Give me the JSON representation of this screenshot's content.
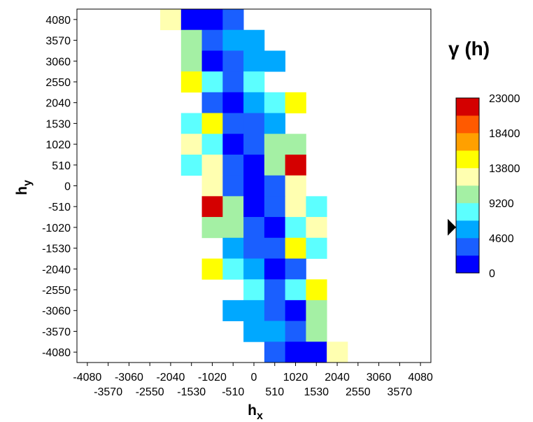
{
  "chart_data": {
    "type": "heatmap",
    "title": "",
    "xlabel": {
      "main": "h",
      "sub": "x"
    },
    "ylabel": {
      "main": "h",
      "sub": "y"
    },
    "x_tick_labels_row1": [
      "-4080",
      "-3060",
      "-2040",
      "-1020",
      "0",
      "1020",
      "2040",
      "3060",
      "4080"
    ],
    "x_tick_labels_row2": [
      "-3570",
      "-2550",
      "-1530",
      "-510",
      "510",
      "1530",
      "2550",
      "3570"
    ],
    "y_tick_labels": [
      "4080",
      "3570",
      "3060",
      "2550",
      "2040",
      "1530",
      "1020",
      "510",
      "0",
      "-510",
      "-1020",
      "-1530",
      "-2040",
      "-2550",
      "-3060",
      "-3570",
      "-4080"
    ],
    "xlim": [
      -4335,
      4335
    ],
    "ylim": [
      -4335,
      4335
    ],
    "cell_size": 510,
    "cells": [
      {
        "x": -2040,
        "y": 4080,
        "v": 13000
      },
      {
        "x": -1530,
        "y": 4080,
        "v": 1000
      },
      {
        "x": -1020,
        "y": 4080,
        "v": 1000
      },
      {
        "x": -510,
        "y": 4080,
        "v": 3000
      },
      {
        "x": -1530,
        "y": 3570,
        "v": 10500
      },
      {
        "x": -1020,
        "y": 3570,
        "v": 3500
      },
      {
        "x": -510,
        "y": 3570,
        "v": 5800
      },
      {
        "x": 0,
        "y": 3570,
        "v": 5800
      },
      {
        "x": -1530,
        "y": 3060,
        "v": 10500
      },
      {
        "x": -1020,
        "y": 3060,
        "v": 1000
      },
      {
        "x": -510,
        "y": 3060,
        "v": 3500
      },
      {
        "x": 0,
        "y": 3060,
        "v": 5800
      },
      {
        "x": 510,
        "y": 3060,
        "v": 5800
      },
      {
        "x": -1530,
        "y": 2550,
        "v": 14500
      },
      {
        "x": -1020,
        "y": 2550,
        "v": 8200
      },
      {
        "x": -510,
        "y": 2550,
        "v": 3500
      },
      {
        "x": 0,
        "y": 2550,
        "v": 8200
      },
      {
        "x": -1020,
        "y": 2040,
        "v": 3500
      },
      {
        "x": -510,
        "y": 2040,
        "v": 1000
      },
      {
        "x": 0,
        "y": 2040,
        "v": 5800
      },
      {
        "x": 510,
        "y": 2040,
        "v": 8200
      },
      {
        "x": 1020,
        "y": 2040,
        "v": 14500
      },
      {
        "x": -1530,
        "y": 1530,
        "v": 8200
      },
      {
        "x": -1020,
        "y": 1530,
        "v": 14500
      },
      {
        "x": -510,
        "y": 1530,
        "v": 3500
      },
      {
        "x": 0,
        "y": 1530,
        "v": 3500
      },
      {
        "x": 510,
        "y": 1530,
        "v": 5800
      },
      {
        "x": -1530,
        "y": 1020,
        "v": 13000
      },
      {
        "x": -1020,
        "y": 1020,
        "v": 8200
      },
      {
        "x": -510,
        "y": 1020,
        "v": 1000
      },
      {
        "x": 0,
        "y": 1020,
        "v": 3500
      },
      {
        "x": 510,
        "y": 1020,
        "v": 10500
      },
      {
        "x": 1020,
        "y": 1020,
        "v": 10500
      },
      {
        "x": -1530,
        "y": 510,
        "v": 8200
      },
      {
        "x": -1020,
        "y": 510,
        "v": 13000
      },
      {
        "x": -510,
        "y": 510,
        "v": 3500
      },
      {
        "x": 0,
        "y": 510,
        "v": 1000
      },
      {
        "x": 510,
        "y": 510,
        "v": 10500
      },
      {
        "x": 1020,
        "y": 510,
        "v": 22000
      },
      {
        "x": -1020,
        "y": 0,
        "v": 13000
      },
      {
        "x": -510,
        "y": 0,
        "v": 3500
      },
      {
        "x": 0,
        "y": 0,
        "v": 1000
      },
      {
        "x": 510,
        "y": 0,
        "v": 3500
      },
      {
        "x": 1020,
        "y": 0,
        "v": 13000
      },
      {
        "x": -1020,
        "y": -510,
        "v": 22000
      },
      {
        "x": -510,
        "y": -510,
        "v": 10500
      },
      {
        "x": 0,
        "y": -510,
        "v": 1000
      },
      {
        "x": 510,
        "y": -510,
        "v": 3500
      },
      {
        "x": 1020,
        "y": -510,
        "v": 13000
      },
      {
        "x": 1530,
        "y": -510,
        "v": 8200
      },
      {
        "x": -1020,
        "y": -1020,
        "v": 10500
      },
      {
        "x": -510,
        "y": -1020,
        "v": 10500
      },
      {
        "x": 0,
        "y": -1020,
        "v": 3500
      },
      {
        "x": 510,
        "y": -1020,
        "v": 1000
      },
      {
        "x": 1020,
        "y": -1020,
        "v": 8200
      },
      {
        "x": 1530,
        "y": -1020,
        "v": 13000
      },
      {
        "x": -510,
        "y": -1530,
        "v": 5800
      },
      {
        "x": 0,
        "y": -1530,
        "v": 3500
      },
      {
        "x": 510,
        "y": -1530,
        "v": 3500
      },
      {
        "x": 1020,
        "y": -1530,
        "v": 14500
      },
      {
        "x": 1530,
        "y": -1530,
        "v": 8200
      },
      {
        "x": -1020,
        "y": -2040,
        "v": 14500
      },
      {
        "x": -510,
        "y": -2040,
        "v": 8200
      },
      {
        "x": 0,
        "y": -2040,
        "v": 5800
      },
      {
        "x": 510,
        "y": -2040,
        "v": 1000
      },
      {
        "x": 1020,
        "y": -2040,
        "v": 3500
      },
      {
        "x": 0,
        "y": -2550,
        "v": 8200
      },
      {
        "x": 510,
        "y": -2550,
        "v": 3500
      },
      {
        "x": 1020,
        "y": -2550,
        "v": 8200
      },
      {
        "x": 1530,
        "y": -2550,
        "v": 14500
      },
      {
        "x": -510,
        "y": -3060,
        "v": 5800
      },
      {
        "x": 0,
        "y": -3060,
        "v": 5800
      },
      {
        "x": 510,
        "y": -3060,
        "v": 3500
      },
      {
        "x": 1020,
        "y": -3060,
        "v": 1000
      },
      {
        "x": 1530,
        "y": -3060,
        "v": 10500
      },
      {
        "x": 0,
        "y": -3570,
        "v": 5800
      },
      {
        "x": 510,
        "y": -3570,
        "v": 5800
      },
      {
        "x": 1020,
        "y": -3570,
        "v": 3500
      },
      {
        "x": 1530,
        "y": -3570,
        "v": 10500
      },
      {
        "x": 510,
        "y": -4080,
        "v": 3500
      },
      {
        "x": 1020,
        "y": -4080,
        "v": 1000
      },
      {
        "x": 1530,
        "y": -4080,
        "v": 1000
      },
      {
        "x": 2040,
        "y": -4080,
        "v": 13000
      }
    ],
    "colorbar": {
      "title": "γ (h)",
      "range": [
        0,
        23000
      ],
      "tick_labels": [
        "23000",
        "18400",
        "13800",
        "9200",
        "4600",
        "0"
      ],
      "tick_values": [
        23000,
        18400,
        13800,
        9200,
        4600,
        0
      ],
      "bands": [
        {
          "from": 0,
          "to": 2300,
          "color": "#0000ff"
        },
        {
          "from": 2300,
          "to": 4600,
          "color": "#1a5fff"
        },
        {
          "from": 4600,
          "to": 6900,
          "color": "#00a8ff"
        },
        {
          "from": 6900,
          "to": 9200,
          "color": "#5cffff"
        },
        {
          "from": 9200,
          "to": 11500,
          "color": "#a4f0a4"
        },
        {
          "from": 11500,
          "to": 13800,
          "color": "#ffffb0"
        },
        {
          "from": 13800,
          "to": 16100,
          "color": "#ffff00"
        },
        {
          "from": 16100,
          "to": 18400,
          "color": "#ffa000"
        },
        {
          "from": 18400,
          "to": 20700,
          "color": "#ff5a00"
        },
        {
          "from": 20700,
          "to": 23000,
          "color": "#d40000"
        }
      ],
      "marker_value": 6000
    },
    "grid": false
  }
}
